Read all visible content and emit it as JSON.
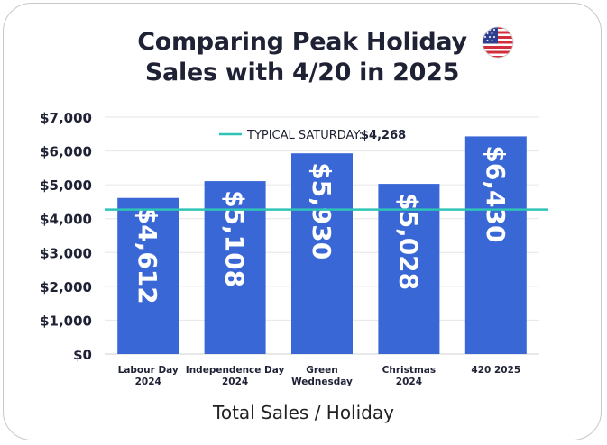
{
  "header": {
    "title_line1": "Comparing Peak Holiday",
    "title_line2": "Sales with 4/20 in 2025",
    "flag_icon": "us-flag-icon"
  },
  "chart_data": {
    "type": "bar",
    "categories": [
      [
        "Labour Day",
        "2024"
      ],
      [
        "Independence Day",
        "2024"
      ],
      [
        "Green",
        "Wednesday"
      ],
      [
        "Christmas",
        "2024"
      ],
      [
        "420 2025"
      ]
    ],
    "values": [
      4612,
      5108,
      5930,
      5028,
      6430
    ],
    "value_labels": [
      "$4,612",
      "$5,108",
      "$5,930",
      "$5,028",
      "$6,430"
    ],
    "ylim": [
      0,
      7000
    ],
    "yticks": [
      0,
      1000,
      2000,
      3000,
      4000,
      5000,
      6000,
      7000
    ],
    "ytick_labels": [
      "$0",
      "$1,000",
      "$2,000",
      "$3,000",
      "$4,000",
      "$5,000",
      "$6,000",
      "$7,000"
    ],
    "xlabel": "Total Sales / Holiday",
    "ylabel": "",
    "grid": true,
    "reference_line": {
      "label": "TYPICAL SATURDAY:",
      "value_label": "$4,268",
      "value": 4268
    },
    "colors": {
      "bar": "#3a67d6",
      "reference_line": "#2ec4b6",
      "grid": "#e6e6e6",
      "text": "#1f2235"
    }
  }
}
